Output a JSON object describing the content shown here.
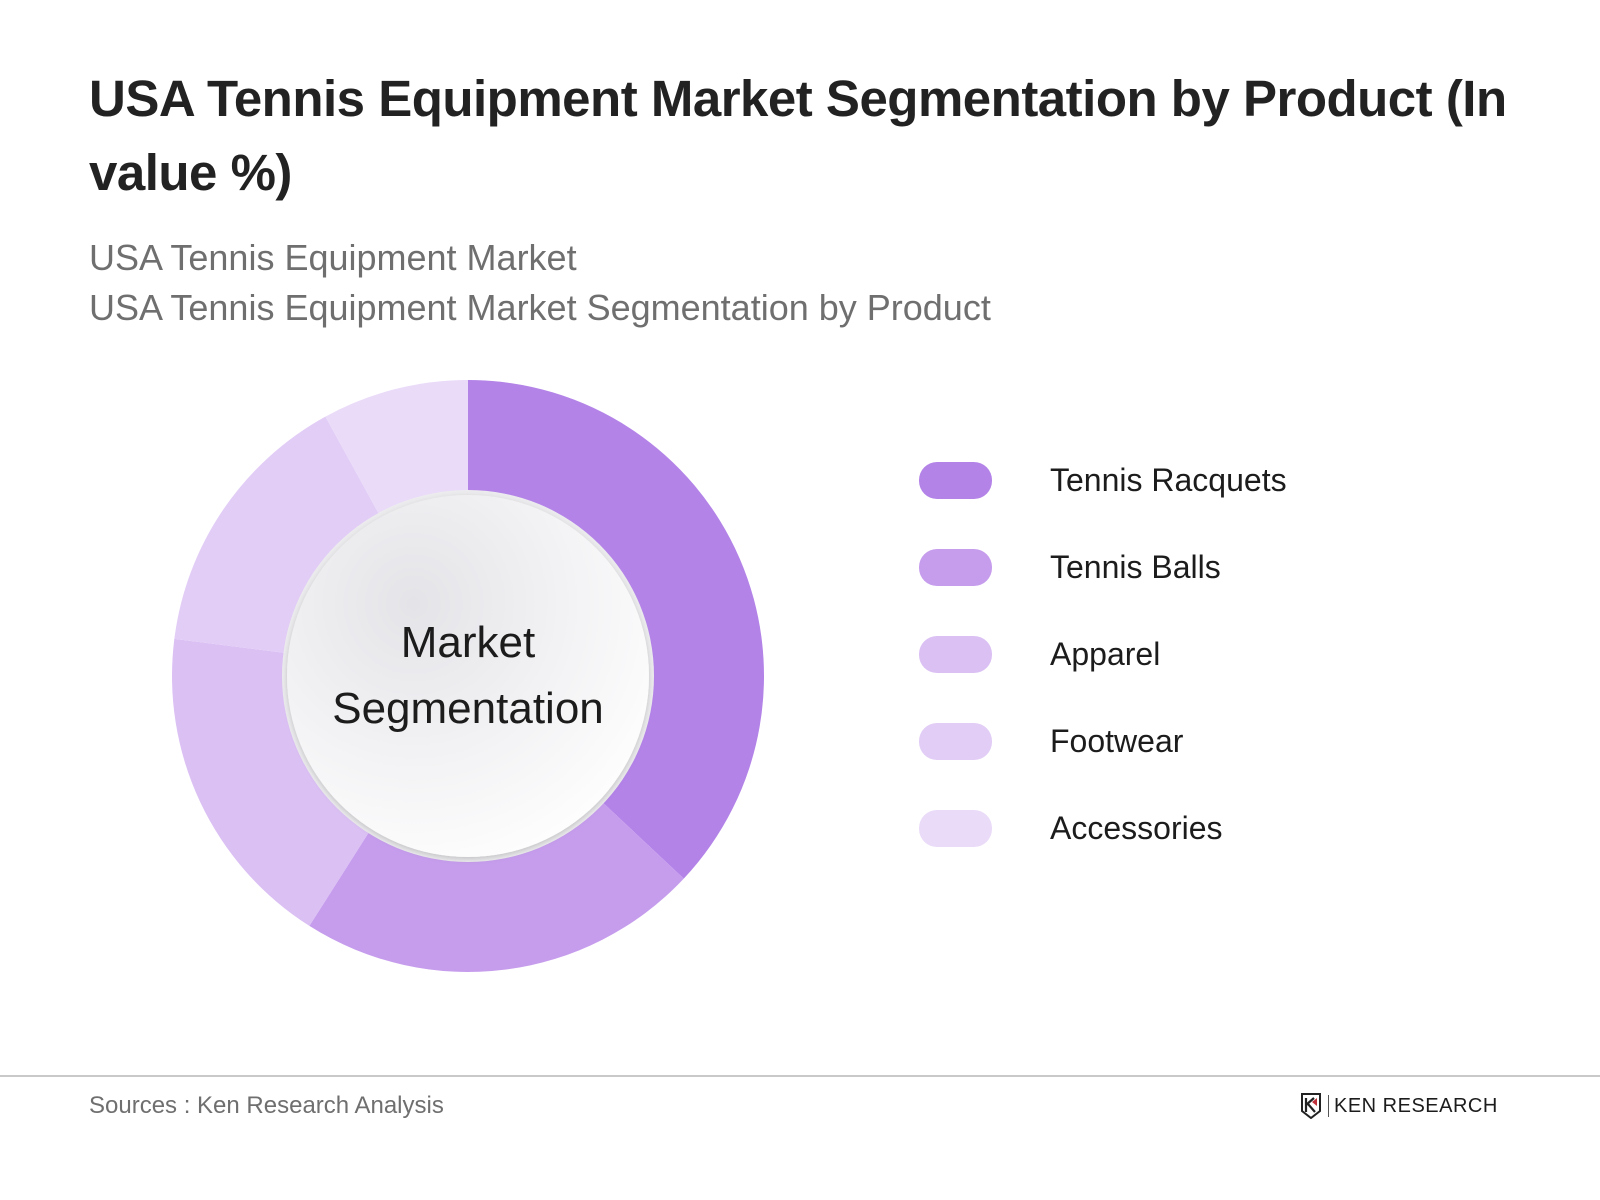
{
  "header": {
    "title": "USA Tennis Equipment Market Segmentation by Product (In value %)",
    "subtitle_1": "USA Tennis Equipment Market",
    "subtitle_2": "USA Tennis Equipment Market Segmentation by Product"
  },
  "donut": {
    "center_line_1": "Market",
    "center_line_2": "Segmentation"
  },
  "legend": [
    {
      "label": "Tennis Racquets",
      "color": "#b383e8"
    },
    {
      "label": "Tennis Balls",
      "color": "#c69ded"
    },
    {
      "label": "Apparel",
      "color": "#dbc0f4"
    },
    {
      "label": "Footwear",
      "color": "#e2cdf6"
    },
    {
      "label": "Accessories",
      "color": "#eadbf9"
    }
  ],
  "footer": {
    "sources": "Sources : Ken Research Analysis",
    "logo_text": "KEN RESEARCH"
  },
  "chart_data": {
    "type": "pie",
    "variant": "donut",
    "title": "USA Tennis Equipment Market Segmentation by Product (In value %)",
    "subtitle": [
      "USA Tennis Equipment Market",
      "USA Tennis Equipment Market Segmentation by Product"
    ],
    "center_text": "Market Segmentation",
    "categories": [
      "Tennis Racquets",
      "Tennis Balls",
      "Apparel",
      "Footwear",
      "Accessories"
    ],
    "values": [
      37,
      22,
      18,
      15,
      8
    ],
    "colors": [
      "#b383e8",
      "#c69ded",
      "#dbc0f4",
      "#e2cdf6",
      "#eadbf9"
    ],
    "start_angle": "12 o'clock, clockwise",
    "legend_position": "right",
    "data_labels": false,
    "source": "Sources : Ken Research Analysis"
  }
}
